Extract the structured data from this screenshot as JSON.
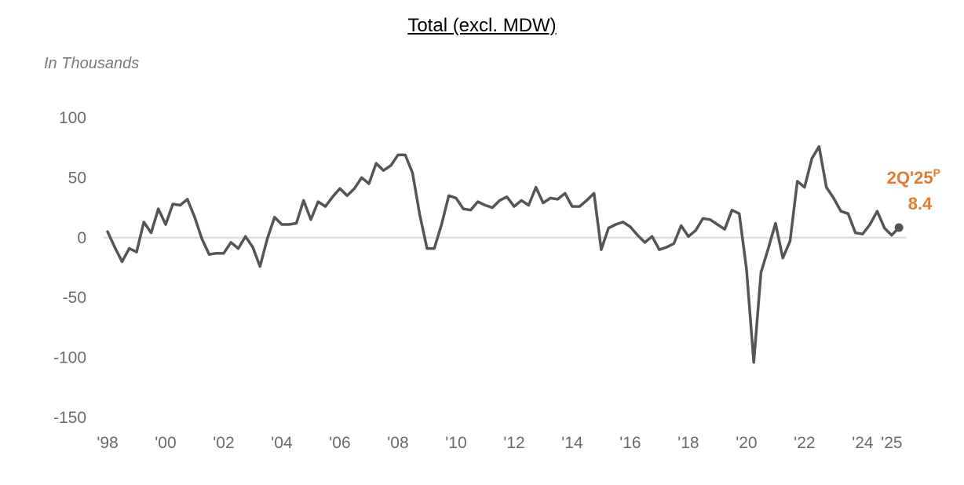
{
  "colors": {
    "line": "#555555",
    "callout": "#e07b32",
    "zero_line": "#d9d9d9",
    "tick_text": "#6b6b6b"
  },
  "chart_data": {
    "type": "line",
    "title": "Total (excl. MDW)",
    "ylabel": "In Thousands",
    "xlabel": "",
    "ylim": [
      -150,
      100
    ],
    "y_ticks": [
      "100",
      "50",
      "0",
      "-50",
      "-100",
      "-150"
    ],
    "x_ticks": [
      "'98",
      "'00",
      "'02",
      "'04",
      "'06",
      "'08",
      "'10",
      "'12",
      "'14",
      "'16",
      "'18",
      "'20",
      "'22",
      "'24",
      "'25"
    ],
    "xlim": [
      1998,
      2025.5
    ],
    "grid": false,
    "callout": {
      "period_label": "2Q'25",
      "superscript": "P",
      "value_label": "8.4"
    },
    "series": [
      {
        "x": [
          1998.0,
          1998.25,
          1998.5,
          1998.75,
          1999.0,
          1999.25,
          1999.5,
          1999.75,
          2000.0,
          2000.25,
          2000.5,
          2000.75,
          2001.0,
          2001.25,
          2001.5,
          2001.75,
          2002.0,
          2002.25,
          2002.5,
          2002.75,
          2003.0,
          2003.25,
          2003.5,
          2003.75,
          2004.0,
          2004.25,
          2004.5,
          2004.75,
          2005.0,
          2005.25,
          2005.5,
          2005.75,
          2006.0,
          2006.25,
          2006.5,
          2006.75,
          2007.0,
          2007.25,
          2007.5,
          2007.75,
          2008.0,
          2008.25,
          2008.5,
          2008.75,
          2009.0,
          2009.25,
          2009.5,
          2009.75,
          2010.0,
          2010.25,
          2010.5,
          2010.75,
          2011.0,
          2011.25,
          2011.5,
          2011.75,
          2012.0,
          2012.25,
          2012.5,
          2012.75,
          2013.0,
          2013.25,
          2013.5,
          2013.75,
          2014.0,
          2014.25,
          2014.5,
          2014.75,
          2015.0,
          2015.25,
          2015.5,
          2015.75,
          2016.0,
          2016.25,
          2016.5,
          2016.75,
          2017.0,
          2017.25,
          2017.5,
          2017.75,
          2018.0,
          2018.25,
          2018.5,
          2018.75,
          2019.0,
          2019.25,
          2019.5,
          2019.75,
          2020.0,
          2020.25,
          2020.5,
          2020.75,
          2021.0,
          2021.25,
          2021.5,
          2021.75,
          2022.0,
          2022.25,
          2022.5,
          2022.75,
          2023.0,
          2023.25,
          2023.5,
          2023.75,
          2024.0,
          2024.25,
          2024.5,
          2024.75,
          2025.0,
          2025.25
        ],
        "values": [
          5,
          -8,
          -20,
          -9,
          -12,
          13,
          4,
          24,
          11,
          28,
          27,
          32,
          17,
          -1,
          -14,
          -13,
          -13,
          -4,
          -9,
          1,
          -8,
          -24,
          -1,
          17,
          11,
          11,
          12,
          31,
          15,
          30,
          26,
          34,
          41,
          35,
          41,
          50,
          45,
          62,
          56,
          60,
          69,
          69,
          54,
          19,
          -9,
          -9,
          11,
          35,
          33,
          24,
          23,
          30,
          27,
          25,
          31,
          34,
          26,
          31,
          27,
          42,
          29,
          33,
          32,
          37,
          26,
          26,
          31,
          37,
          -10,
          8,
          11,
          13,
          9,
          2,
          -4,
          1,
          -10,
          -8,
          -5,
          10,
          1,
          6,
          16,
          15,
          11,
          7,
          23,
          20,
          -26,
          -104,
          -29,
          -9,
          12,
          -17,
          -3,
          47,
          42,
          66,
          76,
          42,
          33,
          22,
          20,
          4,
          3,
          11,
          22,
          8,
          2,
          8.4
        ]
      }
    ]
  }
}
